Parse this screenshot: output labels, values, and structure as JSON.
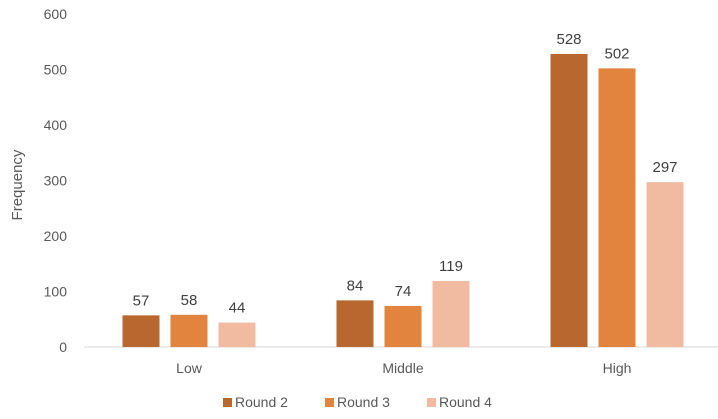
{
  "chart_data": {
    "type": "bar",
    "title": "",
    "xlabel": "",
    "ylabel": "Frequency",
    "categories": [
      "Low",
      "Middle",
      "High"
    ],
    "series": [
      {
        "name": "Round 2",
        "color": "#b8672e",
        "values": [
          57,
          84,
          528
        ]
      },
      {
        "name": "Round 3",
        "color": "#e3843e",
        "values": [
          58,
          74,
          502
        ]
      },
      {
        "name": "Round 4",
        "color": "#f0bba1",
        "values": [
          44,
          119,
          297
        ]
      }
    ],
    "ylim": [
      0,
      600
    ],
    "yticks": [
      "0",
      "100",
      "200",
      "300",
      "400",
      "500",
      "600"
    ],
    "grid": false,
    "legend": "bottom",
    "data_labels": true
  }
}
